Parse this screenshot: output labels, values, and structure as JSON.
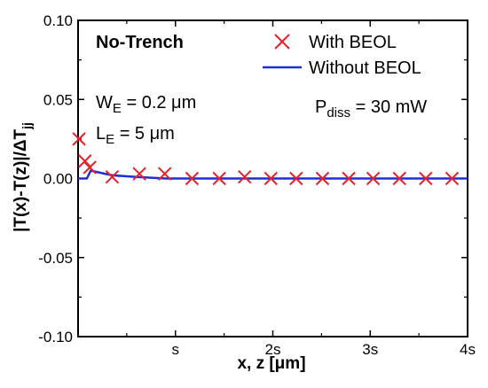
{
  "chart_data": {
    "type": "line",
    "title": "No-Trench",
    "xlabel": "x, z [μm]",
    "ylabel": "|T(x)-T(z)|/ΔT",
    "ylabel_sub": "jj",
    "xlim": [
      0,
      4
    ],
    "ylim": [
      -0.1,
      0.1
    ],
    "x_ticks": [
      1,
      2,
      3,
      4
    ],
    "x_tick_labels": [
      "s",
      "2s",
      "3s",
      "4s"
    ],
    "y_ticks": [
      -0.1,
      -0.05,
      0.0,
      0.05,
      0.1
    ],
    "y_tick_labels": [
      "-0.10",
      "-0.05",
      "0.00",
      "0.05",
      "0.10"
    ],
    "grid": false,
    "legend_position": "top-right",
    "annotations": {
      "we": {
        "main": "W",
        "sub": "E",
        "rest": " = 0.2 μm"
      },
      "le": {
        "main": "L",
        "sub": "E",
        "rest": " = 5 μm"
      },
      "pdiss": {
        "main": "P",
        "sub": "diss",
        "rest": " = 30 mW"
      }
    },
    "series": [
      {
        "name": "With BEOL",
        "marker": "x",
        "color": "#e8202a",
        "x": [
          0.01,
          0.07,
          0.12,
          0.35,
          0.63,
          0.89,
          1.17,
          1.45,
          1.71,
          1.98,
          2.24,
          2.51,
          2.78,
          3.03,
          3.3,
          3.57,
          3.84
        ],
        "y": [
          0.025,
          0.011,
          0.007,
          0.001,
          0.003,
          0.003,
          0.0,
          0.0,
          0.001,
          0.0,
          0.0,
          0.0,
          0.0,
          0.0,
          0.0,
          0.0,
          0.0
        ]
      },
      {
        "name": "Without BEOL",
        "marker": "line",
        "color": "#1f2fd1",
        "x": [
          0.0,
          0.09,
          0.13,
          0.2,
          0.35,
          0.6,
          0.9,
          1.2,
          1.5,
          2.0,
          2.5,
          3.0,
          3.5,
          4.0
        ],
        "y": [
          0.0,
          0.0,
          0.005,
          0.004,
          0.002,
          0.001,
          0.0,
          0.0,
          0.0,
          0.0,
          0.0,
          0.0,
          0.0,
          0.0
        ]
      }
    ]
  }
}
